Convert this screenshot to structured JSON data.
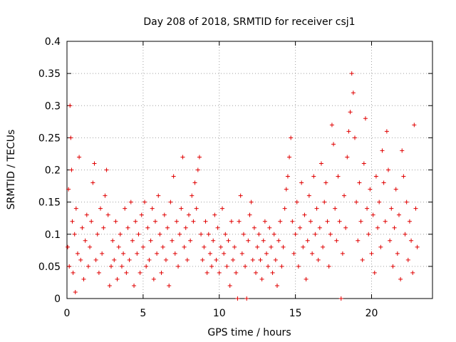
{
  "chart_data": {
    "type": "scatter",
    "title": "Day 208 of 2018, SRMTID for receiver csj1",
    "xlabel": "GPS time / hours",
    "ylabel": "SRMTID / TECUs",
    "xlim": [
      0,
      24
    ],
    "ylim": [
      0,
      0.4
    ],
    "xticks": [
      0,
      5,
      10,
      15,
      20
    ],
    "xtick_labels": [
      "0",
      "5",
      "10",
      "15",
      "20"
    ],
    "yticks": [
      0,
      0.05,
      0.1,
      0.15,
      0.2,
      0.25,
      0.3,
      0.35,
      0.4
    ],
    "ytick_labels": [
      "0",
      "0.05",
      "0.1",
      "0.15",
      "0.2",
      "0.25",
      "0.3",
      "0.35",
      "0.4"
    ],
    "grid": true,
    "marker": "plus",
    "color": "#e00000",
    "series": [
      {
        "name": "csj1",
        "points": [
          [
            0.05,
            0.08
          ],
          [
            0.1,
            0.17
          ],
          [
            0.15,
            0.05
          ],
          [
            0.2,
            0.3
          ],
          [
            0.25,
            0.25
          ],
          [
            0.3,
            0.2
          ],
          [
            0.35,
            0.12
          ],
          [
            0.4,
            0.04
          ],
          [
            0.5,
            0.1
          ],
          [
            0.55,
            0.01
          ],
          [
            0.6,
            0.14
          ],
          [
            0.7,
            0.07
          ],
          [
            0.8,
            0.22
          ],
          [
            0.9,
            0.06
          ],
          [
            1.0,
            0.11
          ],
          [
            1.1,
            0.03
          ],
          [
            1.2,
            0.09
          ],
          [
            1.3,
            0.13
          ],
          [
            1.4,
            0.05
          ],
          [
            1.5,
            0.08
          ],
          [
            1.6,
            0.12
          ],
          [
            1.7,
            0.18
          ],
          [
            1.8,
            0.21
          ],
          [
            1.9,
            0.06
          ],
          [
            2.0,
            0.1
          ],
          [
            2.1,
            0.04
          ],
          [
            2.2,
            0.14
          ],
          [
            2.3,
            0.07
          ],
          [
            2.4,
            0.11
          ],
          [
            2.5,
            0.16
          ],
          [
            2.6,
            0.2
          ],
          [
            2.7,
            0.13
          ],
          [
            2.8,
            0.02
          ],
          [
            2.9,
            0.05
          ],
          [
            3.0,
            0.09
          ],
          [
            3.1,
            0.06
          ],
          [
            3.2,
            0.12
          ],
          [
            3.3,
            0.03
          ],
          [
            3.4,
            0.08
          ],
          [
            3.5,
            0.1
          ],
          [
            3.6,
            0.05
          ],
          [
            3.7,
            0.07
          ],
          [
            3.8,
            0.14
          ],
          [
            3.9,
            0.04
          ],
          [
            4.0,
            0.11
          ],
          [
            4.1,
            0.06
          ],
          [
            4.2,
            0.15
          ],
          [
            4.3,
            0.09
          ],
          [
            4.4,
            0.02
          ],
          [
            4.5,
            0.12
          ],
          [
            4.6,
            0.07
          ],
          [
            4.7,
            0.1
          ],
          [
            4.8,
            0.04
          ],
          [
            4.9,
            0.13
          ],
          [
            5.0,
            0.08
          ],
          [
            5.1,
            0.15
          ],
          [
            5.2,
            0.05
          ],
          [
            5.3,
            0.11
          ],
          [
            5.4,
            0.06
          ],
          [
            5.5,
            0.09
          ],
          [
            5.6,
            0.14
          ],
          [
            5.7,
            0.03
          ],
          [
            5.8,
            0.12
          ],
          [
            5.9,
            0.07
          ],
          [
            6.0,
            0.16
          ],
          [
            6.1,
            0.1
          ],
          [
            6.2,
            0.04
          ],
          [
            6.3,
            0.08
          ],
          [
            6.4,
            0.13
          ],
          [
            6.5,
            0.06
          ],
          [
            6.6,
            0.11
          ],
          [
            6.7,
            0.02
          ],
          [
            6.8,
            0.15
          ],
          [
            6.9,
            0.09
          ],
          [
            7.0,
            0.19
          ],
          [
            7.1,
            0.07
          ],
          [
            7.2,
            0.12
          ],
          [
            7.3,
            0.05
          ],
          [
            7.4,
            0.1
          ],
          [
            7.5,
            0.14
          ],
          [
            7.6,
            0.22
          ],
          [
            7.7,
            0.08
          ],
          [
            7.8,
            0.11
          ],
          [
            7.9,
            0.06
          ],
          [
            8.0,
            0.13
          ],
          [
            8.1,
            0.09
          ],
          [
            8.2,
            0.16
          ],
          [
            8.3,
            0.12
          ],
          [
            8.4,
            0.18
          ],
          [
            8.5,
            0.14
          ],
          [
            8.6,
            0.2
          ],
          [
            8.7,
            0.22
          ],
          [
            8.8,
            0.1
          ],
          [
            8.9,
            0.06
          ],
          [
            9.0,
            0.08
          ],
          [
            9.1,
            0.12
          ],
          [
            9.2,
            0.04
          ],
          [
            9.3,
            0.1
          ],
          [
            9.4,
            0.07
          ],
          [
            9.5,
            0.05
          ],
          [
            9.6,
            0.09
          ],
          [
            9.7,
            0.13
          ],
          [
            9.8,
            0.06
          ],
          [
            9.9,
            0.11
          ],
          [
            10.0,
            0.04
          ],
          [
            10.1,
            0.08
          ],
          [
            10.2,
            0.14
          ],
          [
            10.3,
            0.07
          ],
          [
            10.4,
            0.1
          ],
          [
            10.5,
            0.05
          ],
          [
            10.6,
            0.09
          ],
          [
            10.7,
            0.02
          ],
          [
            10.8,
            0.12
          ],
          [
            10.9,
            0.06
          ],
          [
            11.0,
            0.08
          ],
          [
            11.1,
            0.04
          ],
          [
            11.2,
            0.0
          ],
          [
            11.3,
            0.12
          ],
          [
            11.4,
            0.16
          ],
          [
            11.5,
            0.07
          ],
          [
            11.6,
            0.1
          ],
          [
            11.7,
            0.05
          ],
          [
            11.8,
            0.0
          ],
          [
            11.9,
            0.09
          ],
          [
            12.0,
            0.13
          ],
          [
            12.1,
            0.15
          ],
          [
            12.2,
            0.06
          ],
          [
            12.3,
            0.11
          ],
          [
            12.4,
            0.04
          ],
          [
            12.5,
            0.08
          ],
          [
            12.6,
            0.1
          ],
          [
            12.7,
            0.06
          ],
          [
            12.8,
            0.03
          ],
          [
            12.9,
            0.09
          ],
          [
            13.0,
            0.12
          ],
          [
            13.1,
            0.07
          ],
          [
            13.2,
            0.05
          ],
          [
            13.3,
            0.11
          ],
          [
            13.4,
            0.08
          ],
          [
            13.5,
            0.04
          ],
          [
            13.6,
            0.1
          ],
          [
            13.7,
            0.06
          ],
          [
            13.8,
            0.02
          ],
          [
            13.9,
            0.09
          ],
          [
            14.0,
            0.12
          ],
          [
            14.1,
            0.05
          ],
          [
            14.2,
            0.08
          ],
          [
            14.3,
            0.14
          ],
          [
            14.4,
            0.17
          ],
          [
            14.5,
            0.19
          ],
          [
            14.6,
            0.22
          ],
          [
            14.7,
            0.25
          ],
          [
            14.8,
            0.12
          ],
          [
            14.9,
            0.07
          ],
          [
            15.0,
            0.1
          ],
          [
            15.1,
            0.15
          ],
          [
            15.2,
            0.05
          ],
          [
            15.3,
            0.11
          ],
          [
            15.4,
            0.18
          ],
          [
            15.5,
            0.08
          ],
          [
            15.6,
            0.13
          ],
          [
            15.7,
            0.03
          ],
          [
            15.8,
            0.09
          ],
          [
            15.9,
            0.16
          ],
          [
            16.0,
            0.12
          ],
          [
            16.1,
            0.07
          ],
          [
            16.2,
            0.19
          ],
          [
            16.3,
            0.1
          ],
          [
            16.4,
            0.14
          ],
          [
            16.5,
            0.06
          ],
          [
            16.6,
            0.11
          ],
          [
            16.7,
            0.21
          ],
          [
            16.8,
            0.08
          ],
          [
            16.9,
            0.15
          ],
          [
            17.0,
            0.18
          ],
          [
            17.1,
            0.12
          ],
          [
            17.2,
            0.05
          ],
          [
            17.3,
            0.1
          ],
          [
            17.4,
            0.27
          ],
          [
            17.5,
            0.24
          ],
          [
            17.6,
            0.14
          ],
          [
            17.7,
            0.09
          ],
          [
            17.8,
            0.19
          ],
          [
            17.9,
            0.12
          ],
          [
            18.0,
            0.0
          ],
          [
            18.1,
            0.07
          ],
          [
            18.2,
            0.16
          ],
          [
            18.3,
            0.11
          ],
          [
            18.4,
            0.22
          ],
          [
            18.5,
            0.26
          ],
          [
            18.6,
            0.29
          ],
          [
            18.7,
            0.35
          ],
          [
            18.8,
            0.32
          ],
          [
            18.9,
            0.25
          ],
          [
            19.0,
            0.15
          ],
          [
            19.1,
            0.09
          ],
          [
            19.2,
            0.18
          ],
          [
            19.3,
            0.12
          ],
          [
            19.4,
            0.06
          ],
          [
            19.5,
            0.21
          ],
          [
            19.6,
            0.28
          ],
          [
            19.7,
            0.14
          ],
          [
            19.8,
            0.1
          ],
          [
            19.9,
            0.17
          ],
          [
            20.0,
            0.07
          ],
          [
            20.1,
            0.13
          ],
          [
            20.2,
            0.04
          ],
          [
            20.3,
            0.19
          ],
          [
            20.4,
            0.11
          ],
          [
            20.5,
            0.15
          ],
          [
            20.6,
            0.08
          ],
          [
            20.7,
            0.23
          ],
          [
            20.8,
            0.18
          ],
          [
            20.9,
            0.12
          ],
          [
            21.0,
            0.26
          ],
          [
            21.1,
            0.2
          ],
          [
            21.2,
            0.09
          ],
          [
            21.3,
            0.14
          ],
          [
            21.4,
            0.05
          ],
          [
            21.5,
            0.11
          ],
          [
            21.6,
            0.17
          ],
          [
            21.7,
            0.07
          ],
          [
            21.8,
            0.13
          ],
          [
            21.9,
            0.03
          ],
          [
            22.0,
            0.23
          ],
          [
            22.1,
            0.19
          ],
          [
            22.2,
            0.1
          ],
          [
            22.3,
            0.15
          ],
          [
            22.4,
            0.06
          ],
          [
            22.5,
            0.12
          ],
          [
            22.6,
            0.09
          ],
          [
            22.7,
            0.04
          ],
          [
            22.8,
            0.27
          ],
          [
            22.9,
            0.14
          ],
          [
            23.0,
            0.08
          ]
        ]
      }
    ]
  }
}
